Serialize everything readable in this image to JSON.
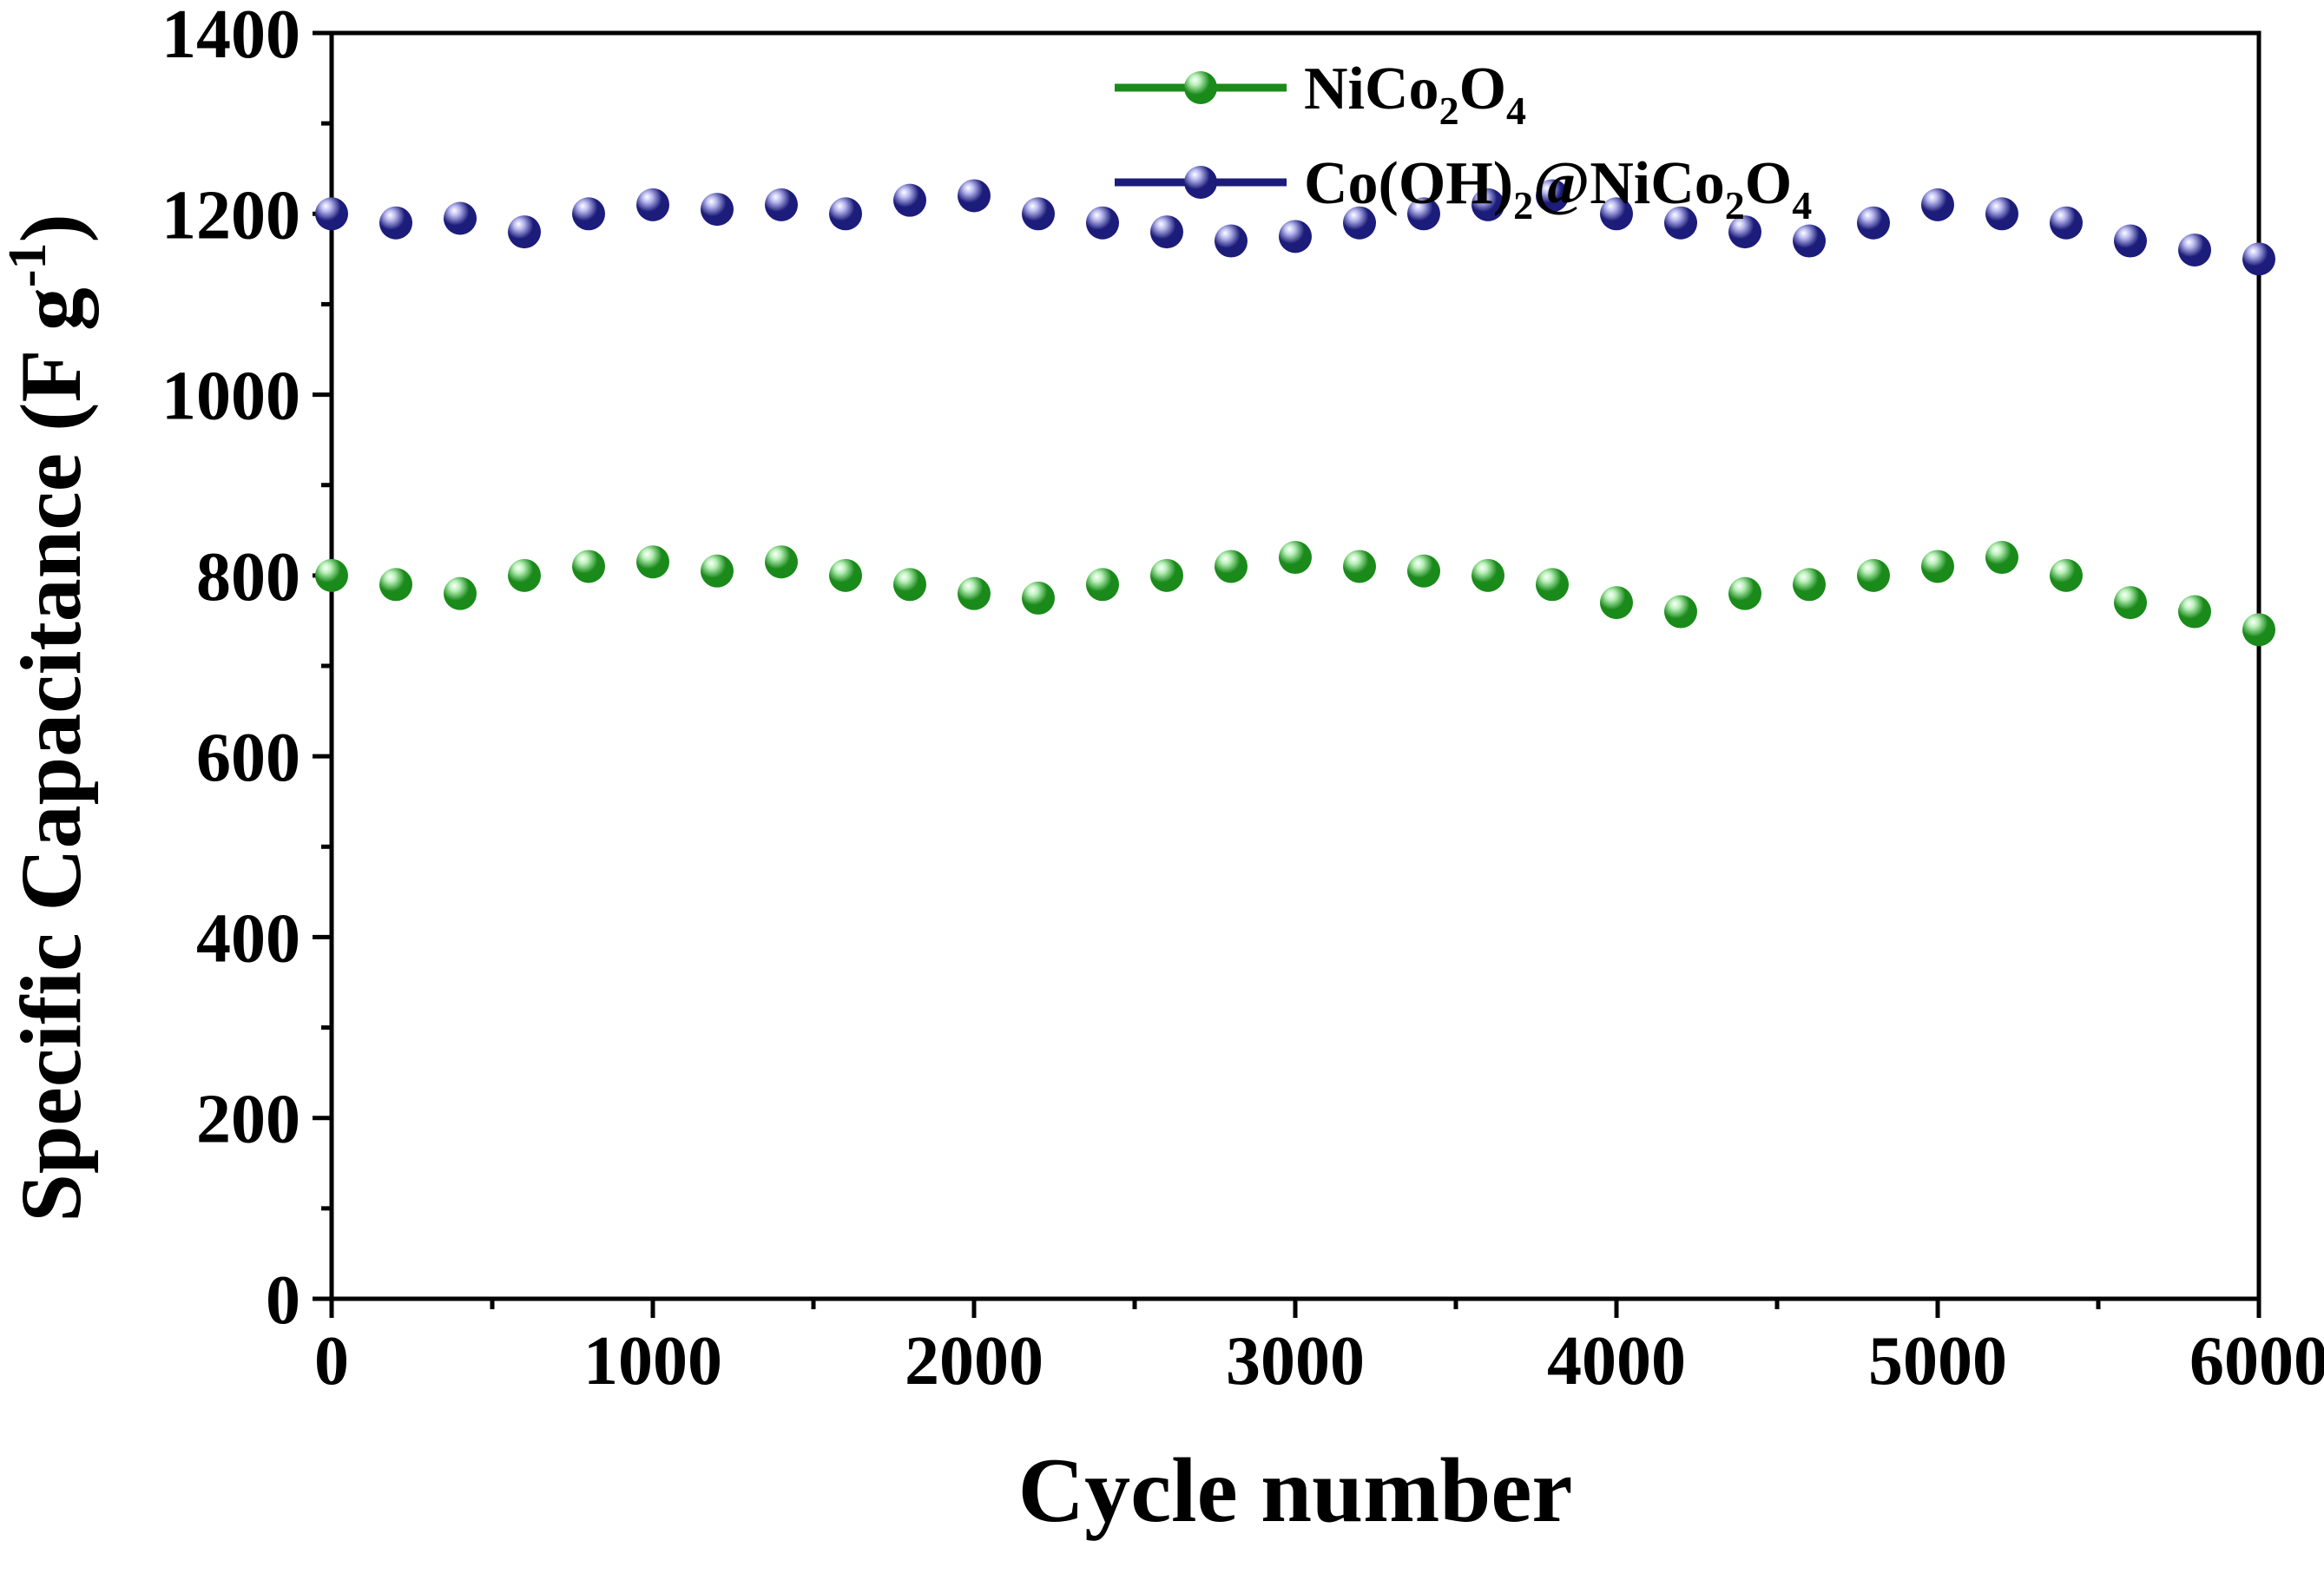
{
  "chart_data": {
    "type": "scatter",
    "xlabel": "Cycle number",
    "ylabel": {
      "main": "Specific Capacitance (F g",
      "superscript": "-1",
      "close": ")"
    },
    "xlim": [
      0,
      6000
    ],
    "ylim": [
      0,
      1400
    ],
    "xticks": [
      0,
      1000,
      2000,
      3000,
      4000,
      5000,
      6000
    ],
    "yticks": [
      0,
      200,
      400,
      600,
      800,
      1000,
      1200,
      1400
    ],
    "x_minor_step": 500,
    "y_minor_step": 100,
    "grid": false,
    "legend_position": "top-center",
    "x": [
      0,
      200,
      400,
      600,
      800,
      1000,
      1200,
      1400,
      1600,
      1800,
      2000,
      2200,
      2400,
      2600,
      2800,
      3000,
      3200,
      3400,
      3600,
      3800,
      4000,
      4200,
      4400,
      4600,
      4800,
      5000,
      5200,
      5400,
      5600,
      5800,
      6000
    ],
    "series": [
      {
        "name": "NiCo2O4",
        "legend_label": [
          {
            "text": "NiCo",
            "sub": false
          },
          {
            "text": "2",
            "sub": true
          },
          {
            "text": "O",
            "sub": false
          },
          {
            "text": "4",
            "sub": true
          }
        ],
        "color": "#1a8a1a",
        "highlight": "#b8f0b8",
        "values": [
          800,
          790,
          780,
          800,
          810,
          815,
          805,
          815,
          800,
          790,
          780,
          775,
          790,
          800,
          810,
          820,
          810,
          805,
          800,
          790,
          770,
          760,
          780,
          790,
          800,
          810,
          820,
          800,
          770,
          760,
          740
        ]
      },
      {
        "name": "Co(OH)2@NiCo2O4",
        "legend_label": [
          {
            "text": "Co(OH)",
            "sub": false
          },
          {
            "text": "2",
            "sub": true
          },
          {
            "text": "@NiCo",
            "sub": false
          },
          {
            "text": "2",
            "sub": true
          },
          {
            "text": "O",
            "sub": false
          },
          {
            "text": "4",
            "sub": true
          }
        ],
        "color": "#1c1c7a",
        "highlight": "#b8b8f0",
        "values": [
          1200,
          1190,
          1195,
          1180,
          1200,
          1210,
          1205,
          1210,
          1200,
          1215,
          1220,
          1200,
          1190,
          1180,
          1170,
          1175,
          1190,
          1200,
          1210,
          1220,
          1200,
          1190,
          1180,
          1170,
          1190,
          1210,
          1200,
          1190,
          1170,
          1160,
          1150
        ]
      }
    ]
  }
}
